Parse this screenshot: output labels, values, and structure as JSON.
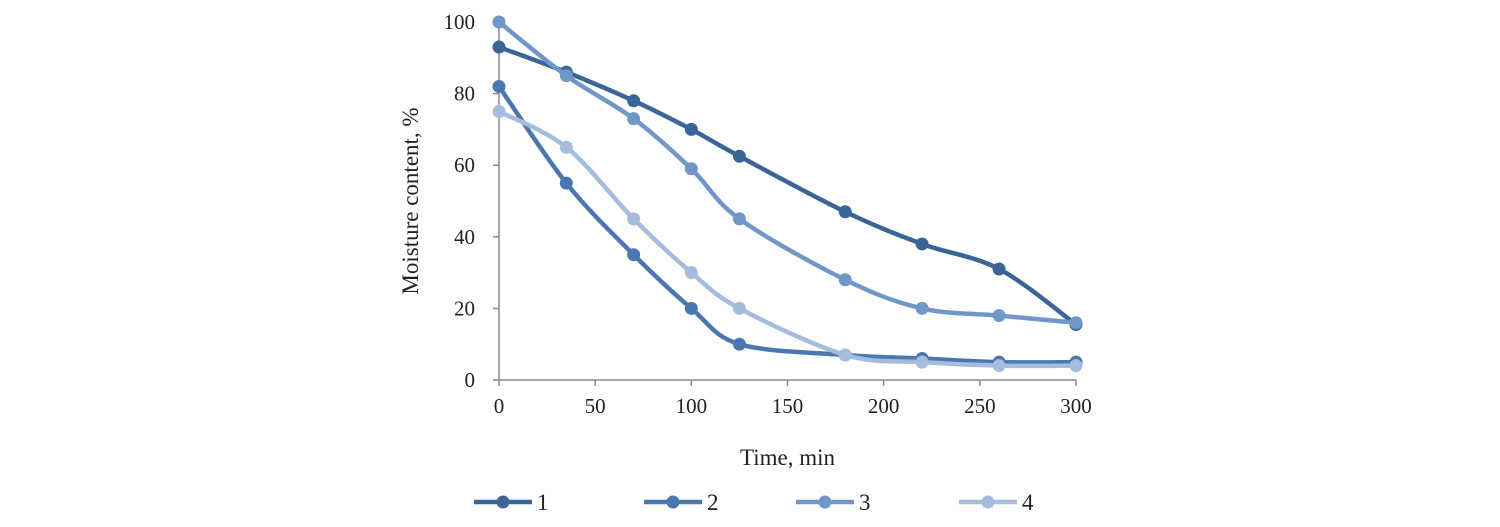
{
  "chart_data": {
    "type": "line",
    "title": "",
    "xlabel": "Time, min",
    "ylabel": "Moisture content, %",
    "xlim": [
      0,
      300
    ],
    "ylim": [
      0,
      100
    ],
    "xticks": [
      0,
      50,
      100,
      150,
      200,
      250,
      300
    ],
    "yticks": [
      0,
      20,
      40,
      60,
      80,
      100
    ],
    "grid": false,
    "legend_position": "bottom",
    "x": [
      0,
      35,
      70,
      100,
      125,
      180,
      220,
      260,
      300
    ],
    "series": [
      {
        "name": "1",
        "color": "#3a6596",
        "values": [
          93,
          86,
          78,
          70,
          62.5,
          47,
          38,
          31,
          15.5
        ]
      },
      {
        "name": "2",
        "color": "#4a77ae",
        "values": [
          82,
          55,
          35,
          20,
          10,
          7,
          6,
          5,
          5
        ]
      },
      {
        "name": "3",
        "color": "#7197c9",
        "values": [
          100,
          85,
          73,
          59,
          45,
          28,
          20,
          18,
          16
        ]
      },
      {
        "name": "4",
        "color": "#a6bcdc",
        "values": [
          75,
          65,
          45,
          30,
          20,
          7,
          5,
          4,
          4
        ]
      }
    ]
  }
}
